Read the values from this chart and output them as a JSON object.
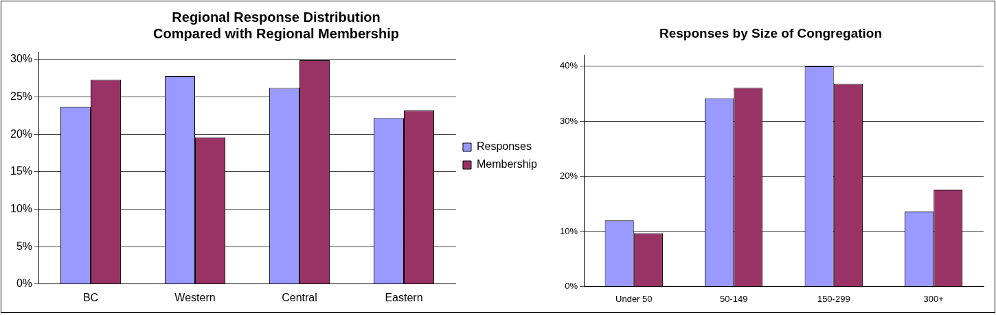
{
  "chart_data": [
    {
      "type": "bar",
      "title": "Regional Response Distribution\nCompared with Regional Membership",
      "categories": [
        "BC",
        "Western",
        "Central",
        "Eastern"
      ],
      "series": [
        {
          "name": "Responses",
          "color": "#9999ff",
          "values": [
            23.7,
            27.8,
            26.2,
            22.2
          ]
        },
        {
          "name": "Membership",
          "color": "#993366",
          "values": [
            27.3,
            19.6,
            29.9,
            23.2
          ]
        }
      ],
      "ylim": [
        0,
        31
      ],
      "yticks": [
        {
          "value": 0,
          "label": "0%"
        },
        {
          "value": 5,
          "label": "5%"
        },
        {
          "value": 10,
          "label": "10%"
        },
        {
          "value": 15,
          "label": "15%"
        },
        {
          "value": 20,
          "label": "20%"
        },
        {
          "value": 25,
          "label": "25%"
        },
        {
          "value": 30,
          "label": "30%"
        }
      ],
      "grid": "y",
      "legend": "right"
    },
    {
      "type": "bar",
      "title": "Responses by Size of Congregation",
      "categories": [
        "Under 50",
        "50-149",
        "150-299",
        "300+"
      ],
      "series": [
        {
          "color": "#9999ff",
          "values": [
            12.0,
            34.2,
            40.0,
            13.6
          ]
        },
        {
          "color": "#993366",
          "values": [
            9.7,
            36.1,
            36.8,
            17.6
          ]
        }
      ],
      "ylim": [
        0,
        42
      ],
      "yticks": [
        {
          "value": 0,
          "label": "0%"
        },
        {
          "value": 10,
          "label": "10%"
        },
        {
          "value": 20,
          "label": "20%"
        },
        {
          "value": 30,
          "label": "30%"
        },
        {
          "value": 40,
          "label": "40%"
        }
      ],
      "grid": "y"
    }
  ]
}
